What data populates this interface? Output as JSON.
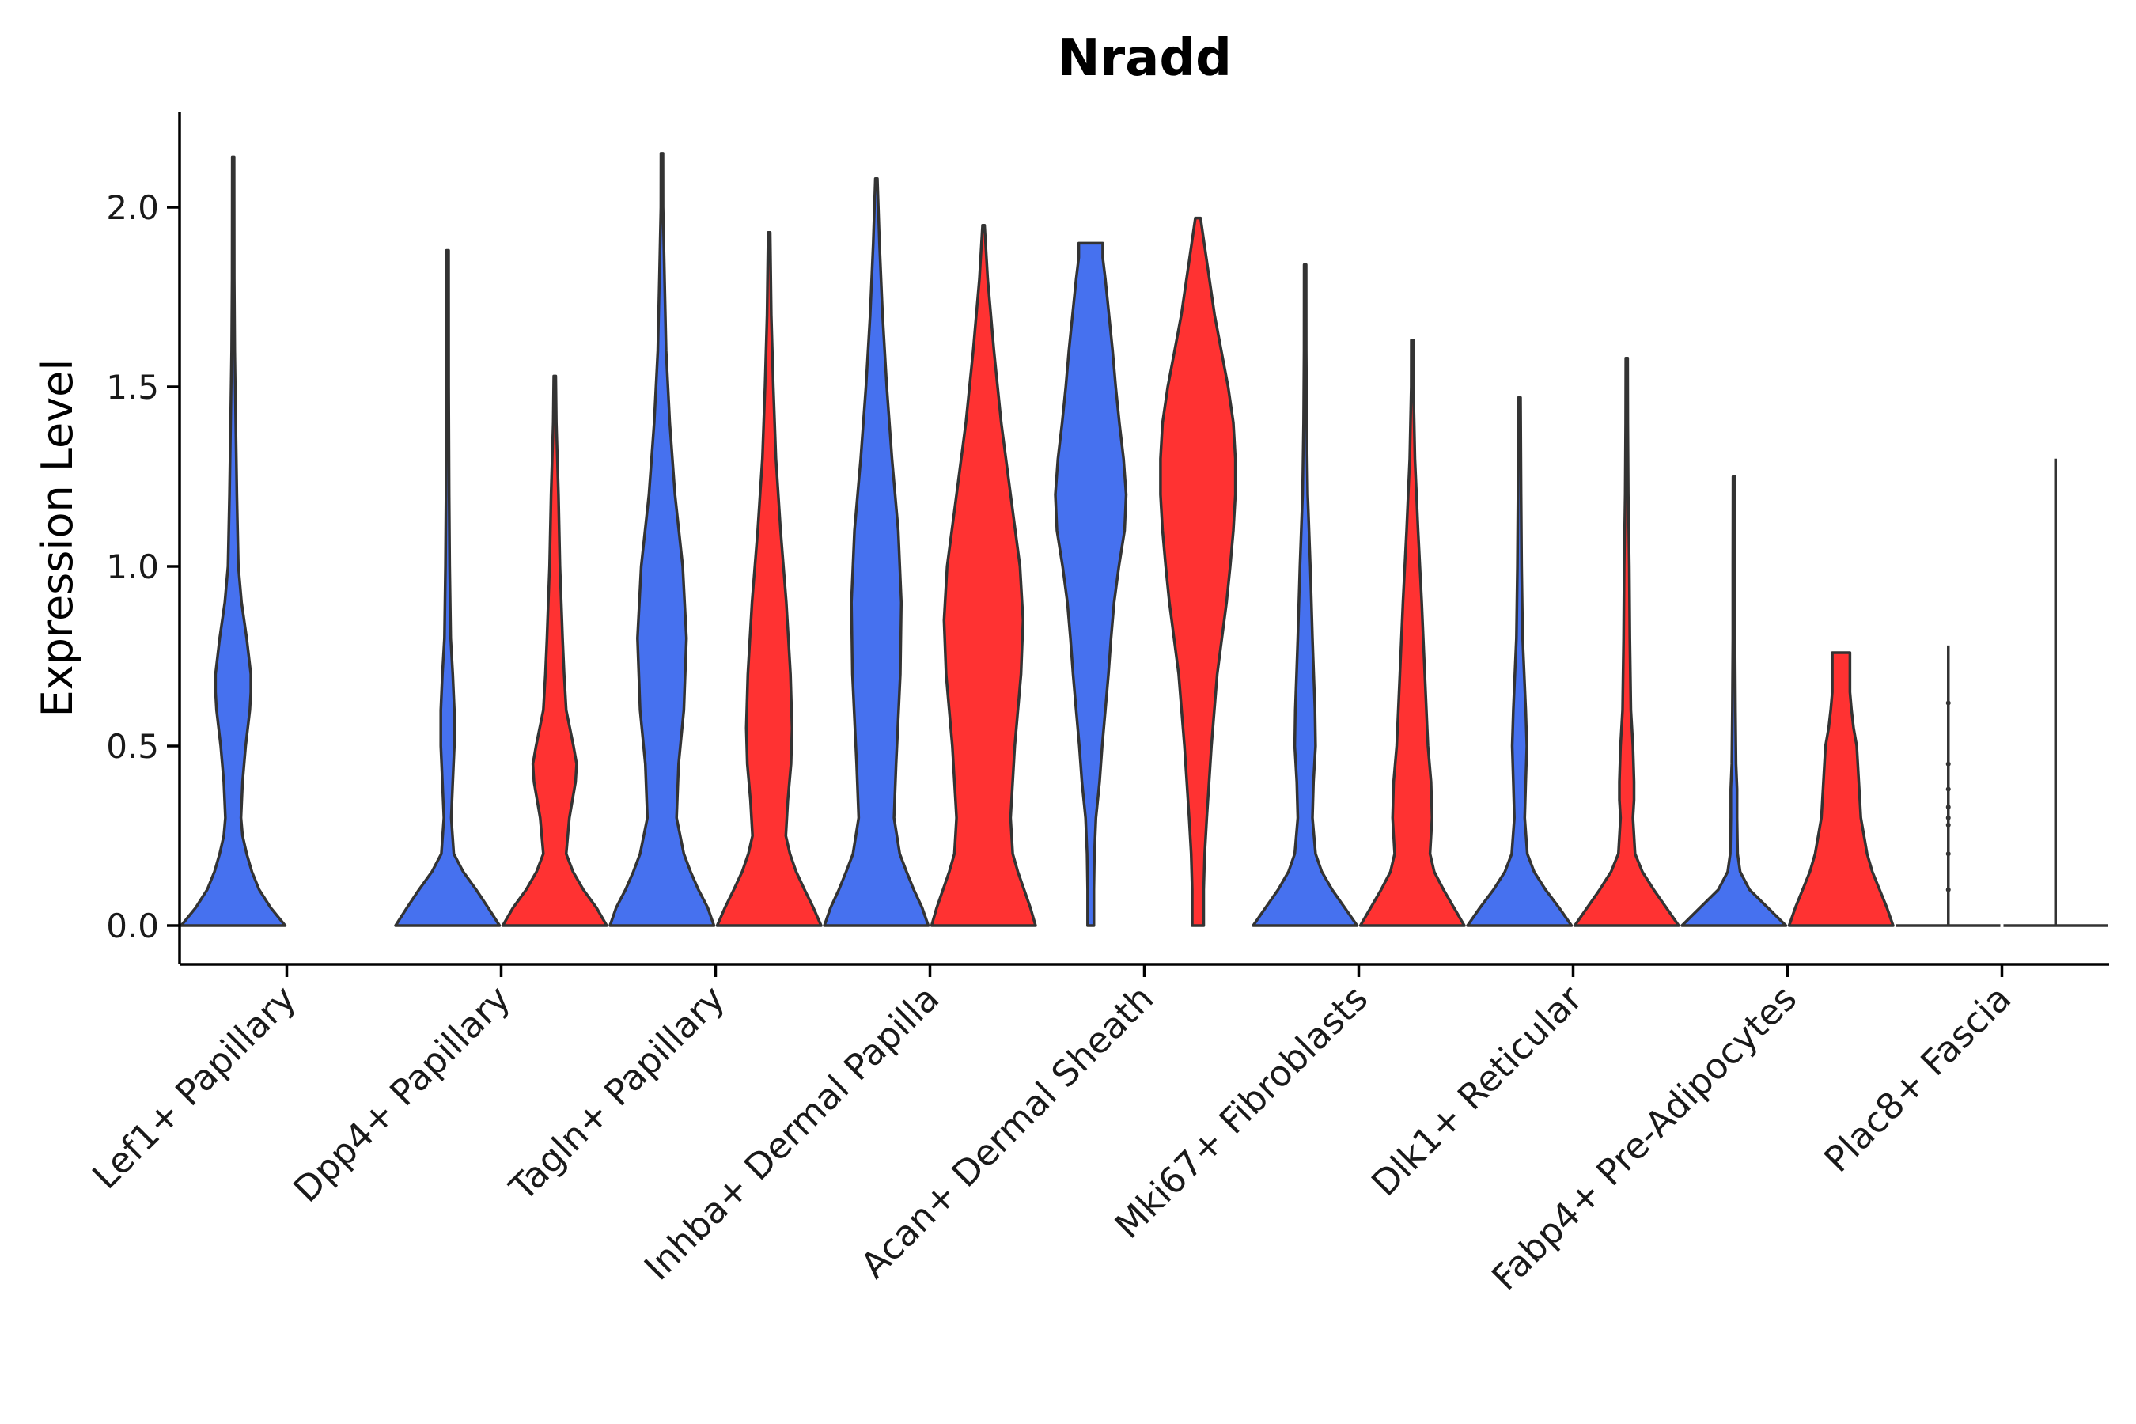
{
  "chart_data": {
    "type": "violin",
    "title": "Nradd",
    "xlabel": "",
    "ylabel": "Expression Level",
    "ylim": [
      -0.11,
      2.27
    ],
    "yticks": [
      0.0,
      0.5,
      1.0,
      1.5,
      2.0
    ],
    "ytick_labels": [
      "0.0",
      "0.5",
      "1.0",
      "1.5",
      "2.0"
    ],
    "split_colors": {
      "group_a": "#4671ef",
      "group_b": "#ff3232"
    },
    "categories": [
      "Lef1+ Papillary",
      "Dpp4+ Papillary",
      "Tagln+ Papillary",
      "Inhba+ Dermal Papilla",
      "Acan+ Dermal Sheath",
      "Mki67+ Fibroblasts",
      "Dlk1+ Reticular",
      "Fabp4+ Pre-Adipocytes",
      "Plac8+ Fascia"
    ],
    "violins": [
      {
        "category": "Lef1+ Papillary",
        "group": "group_a",
        "max": 2.14,
        "profile": [
          [
            0,
            1.0
          ],
          [
            0.05,
            0.72
          ],
          [
            0.1,
            0.5
          ],
          [
            0.15,
            0.36
          ],
          [
            0.2,
            0.26
          ],
          [
            0.25,
            0.18
          ],
          [
            0.3,
            0.15
          ],
          [
            0.4,
            0.18
          ],
          [
            0.5,
            0.24
          ],
          [
            0.6,
            0.32
          ],
          [
            0.65,
            0.34
          ],
          [
            0.7,
            0.34
          ],
          [
            0.8,
            0.26
          ],
          [
            0.9,
            0.16
          ],
          [
            1.0,
            0.1
          ],
          [
            1.2,
            0.07
          ],
          [
            1.4,
            0.05
          ],
          [
            1.6,
            0.03
          ],
          [
            1.8,
            0.02
          ],
          [
            2.14,
            0.0
          ]
        ]
      },
      {
        "category": "Dpp4+ Papillary",
        "group": "group_a",
        "max": 1.88,
        "profile": [
          [
            0,
            1.0
          ],
          [
            0.05,
            0.78
          ],
          [
            0.1,
            0.55
          ],
          [
            0.15,
            0.3
          ],
          [
            0.2,
            0.12
          ],
          [
            0.3,
            0.07
          ],
          [
            0.4,
            0.1
          ],
          [
            0.5,
            0.13
          ],
          [
            0.6,
            0.13
          ],
          [
            0.7,
            0.1
          ],
          [
            0.8,
            0.06
          ],
          [
            1.0,
            0.04
          ],
          [
            1.2,
            0.03
          ],
          [
            1.5,
            0.02
          ],
          [
            1.88,
            0.0
          ]
        ]
      },
      {
        "category": "Dpp4+ Papillary",
        "group": "group_b",
        "max": 1.53,
        "profile": [
          [
            0,
            1.0
          ],
          [
            0.05,
            0.8
          ],
          [
            0.1,
            0.55
          ],
          [
            0.15,
            0.35
          ],
          [
            0.2,
            0.22
          ],
          [
            0.3,
            0.28
          ],
          [
            0.4,
            0.4
          ],
          [
            0.45,
            0.42
          ],
          [
            0.5,
            0.36
          ],
          [
            0.6,
            0.22
          ],
          [
            0.7,
            0.18
          ],
          [
            0.8,
            0.15
          ],
          [
            1.0,
            0.1
          ],
          [
            1.2,
            0.07
          ],
          [
            1.4,
            0.03
          ],
          [
            1.53,
            0.0
          ]
        ]
      },
      {
        "category": "Tagln+ Papillary",
        "group": "group_a",
        "max": 2.15,
        "profile": [
          [
            0,
            1.0
          ],
          [
            0.05,
            0.88
          ],
          [
            0.1,
            0.7
          ],
          [
            0.15,
            0.55
          ],
          [
            0.2,
            0.42
          ],
          [
            0.3,
            0.28
          ],
          [
            0.45,
            0.32
          ],
          [
            0.6,
            0.42
          ],
          [
            0.8,
            0.47
          ],
          [
            1.0,
            0.4
          ],
          [
            1.2,
            0.25
          ],
          [
            1.4,
            0.15
          ],
          [
            1.6,
            0.08
          ],
          [
            1.8,
            0.05
          ],
          [
            2.0,
            0.02
          ],
          [
            2.15,
            0.0
          ]
        ]
      },
      {
        "category": "Tagln+ Papillary",
        "group": "group_b",
        "max": 1.93,
        "profile": [
          [
            0,
            1.0
          ],
          [
            0.05,
            0.85
          ],
          [
            0.1,
            0.68
          ],
          [
            0.15,
            0.52
          ],
          [
            0.2,
            0.4
          ],
          [
            0.25,
            0.32
          ],
          [
            0.35,
            0.36
          ],
          [
            0.45,
            0.42
          ],
          [
            0.55,
            0.44
          ],
          [
            0.7,
            0.41
          ],
          [
            0.9,
            0.33
          ],
          [
            1.1,
            0.22
          ],
          [
            1.3,
            0.13
          ],
          [
            1.5,
            0.08
          ],
          [
            1.7,
            0.04
          ],
          [
            1.93,
            0.0
          ]
        ]
      },
      {
        "category": "Inhba+ Dermal Papilla",
        "group": "group_a",
        "max": 2.08,
        "profile": [
          [
            0,
            1.0
          ],
          [
            0.05,
            0.88
          ],
          [
            0.1,
            0.72
          ],
          [
            0.15,
            0.58
          ],
          [
            0.2,
            0.45
          ],
          [
            0.3,
            0.34
          ],
          [
            0.45,
            0.38
          ],
          [
            0.7,
            0.46
          ],
          [
            0.9,
            0.48
          ],
          [
            1.1,
            0.42
          ],
          [
            1.3,
            0.3
          ],
          [
            1.5,
            0.2
          ],
          [
            1.7,
            0.12
          ],
          [
            1.9,
            0.06
          ],
          [
            2.08,
            0.0
          ]
        ]
      },
      {
        "category": "Inhba+ Dermal Papilla",
        "group": "group_b",
        "max": 1.95,
        "profile": [
          [
            0,
            1.0
          ],
          [
            0.05,
            0.9
          ],
          [
            0.1,
            0.78
          ],
          [
            0.15,
            0.66
          ],
          [
            0.2,
            0.56
          ],
          [
            0.3,
            0.52
          ],
          [
            0.5,
            0.6
          ],
          [
            0.7,
            0.72
          ],
          [
            0.85,
            0.76
          ],
          [
            1.0,
            0.7
          ],
          [
            1.2,
            0.52
          ],
          [
            1.4,
            0.34
          ],
          [
            1.6,
            0.2
          ],
          [
            1.8,
            0.08
          ],
          [
            1.95,
            0.0
          ]
        ]
      },
      {
        "category": "Acan+ Dermal Sheath",
        "group": "group_a",
        "max": 1.9,
        "profile": [
          [
            0,
            0.06
          ],
          [
            0.1,
            0.06
          ],
          [
            0.2,
            0.07
          ],
          [
            0.3,
            0.1
          ],
          [
            0.4,
            0.17
          ],
          [
            0.5,
            0.22
          ],
          [
            0.6,
            0.28
          ],
          [
            0.7,
            0.34
          ],
          [
            0.8,
            0.39
          ],
          [
            0.9,
            0.45
          ],
          [
            1.0,
            0.54
          ],
          [
            1.1,
            0.65
          ],
          [
            1.2,
            0.68
          ],
          [
            1.3,
            0.63
          ],
          [
            1.4,
            0.55
          ],
          [
            1.5,
            0.48
          ],
          [
            1.6,
            0.42
          ],
          [
            1.7,
            0.35
          ],
          [
            1.8,
            0.28
          ],
          [
            1.86,
            0.23
          ],
          [
            1.9,
            0.23
          ]
        ]
      },
      {
        "category": "Acan+ Dermal Sheath",
        "group": "group_b",
        "max": 1.97,
        "profile": [
          [
            0,
            0.11
          ],
          [
            0.1,
            0.11
          ],
          [
            0.2,
            0.13
          ],
          [
            0.3,
            0.17
          ],
          [
            0.5,
            0.26
          ],
          [
            0.7,
            0.37
          ],
          [
            0.9,
            0.55
          ],
          [
            1.0,
            0.62
          ],
          [
            1.1,
            0.68
          ],
          [
            1.2,
            0.72
          ],
          [
            1.3,
            0.72
          ],
          [
            1.4,
            0.68
          ],
          [
            1.5,
            0.58
          ],
          [
            1.6,
            0.45
          ],
          [
            1.7,
            0.32
          ],
          [
            1.8,
            0.22
          ],
          [
            1.9,
            0.12
          ],
          [
            1.96,
            0.06
          ],
          [
            1.97,
            0.05
          ]
        ]
      },
      {
        "category": "Mki67+ Fibroblasts",
        "group": "group_a",
        "max": 1.84,
        "profile": [
          [
            0,
            1.0
          ],
          [
            0.05,
            0.76
          ],
          [
            0.1,
            0.52
          ],
          [
            0.15,
            0.32
          ],
          [
            0.2,
            0.2
          ],
          [
            0.3,
            0.14
          ],
          [
            0.4,
            0.16
          ],
          [
            0.5,
            0.2
          ],
          [
            0.6,
            0.19
          ],
          [
            0.8,
            0.14
          ],
          [
            1.0,
            0.1
          ],
          [
            1.2,
            0.05
          ],
          [
            1.4,
            0.03
          ],
          [
            1.6,
            0.02
          ],
          [
            1.84,
            0.0
          ]
        ]
      },
      {
        "category": "Mki67+ Fibroblasts",
        "group": "group_b",
        "max": 1.63,
        "profile": [
          [
            0,
            1.0
          ],
          [
            0.05,
            0.8
          ],
          [
            0.1,
            0.6
          ],
          [
            0.15,
            0.42
          ],
          [
            0.2,
            0.34
          ],
          [
            0.3,
            0.38
          ],
          [
            0.4,
            0.36
          ],
          [
            0.5,
            0.3
          ],
          [
            0.7,
            0.24
          ],
          [
            0.9,
            0.18
          ],
          [
            1.1,
            0.11
          ],
          [
            1.3,
            0.05
          ],
          [
            1.5,
            0.02
          ],
          [
            1.63,
            0.0
          ]
        ]
      },
      {
        "category": "Dlk1+ Reticular",
        "group": "group_a",
        "max": 1.47,
        "profile": [
          [
            0,
            1.0
          ],
          [
            0.05,
            0.76
          ],
          [
            0.1,
            0.5
          ],
          [
            0.15,
            0.28
          ],
          [
            0.2,
            0.15
          ],
          [
            0.3,
            0.1
          ],
          [
            0.4,
            0.12
          ],
          [
            0.5,
            0.14
          ],
          [
            0.6,
            0.12
          ],
          [
            0.8,
            0.06
          ],
          [
            1.0,
            0.04
          ],
          [
            1.2,
            0.03
          ],
          [
            1.47,
            0.0
          ]
        ]
      },
      {
        "category": "Dlk1+ Reticular",
        "group": "group_b",
        "max": 1.58,
        "profile": [
          [
            0,
            1.0
          ],
          [
            0.05,
            0.76
          ],
          [
            0.1,
            0.52
          ],
          [
            0.15,
            0.3
          ],
          [
            0.2,
            0.16
          ],
          [
            0.3,
            0.12
          ],
          [
            0.35,
            0.14
          ],
          [
            0.4,
            0.14
          ],
          [
            0.5,
            0.12
          ],
          [
            0.6,
            0.08
          ],
          [
            0.8,
            0.06
          ],
          [
            1.0,
            0.05
          ],
          [
            1.2,
            0.03
          ],
          [
            1.4,
            0.02
          ],
          [
            1.58,
            0.0
          ]
        ]
      },
      {
        "category": "Fabp4+ Pre-Adipocytes",
        "group": "group_a",
        "max": 1.25,
        "profile": [
          [
            0,
            1.0
          ],
          [
            0.05,
            0.65
          ],
          [
            0.1,
            0.3
          ],
          [
            0.15,
            0.12
          ],
          [
            0.2,
            0.07
          ],
          [
            0.3,
            0.06
          ],
          [
            0.38,
            0.06
          ],
          [
            0.45,
            0.04
          ],
          [
            0.6,
            0.03
          ],
          [
            0.8,
            0.02
          ],
          [
            1.0,
            0.02
          ],
          [
            1.25,
            0.0
          ]
        ]
      },
      {
        "category": "Fabp4+ Pre-Adipocytes",
        "group": "group_b",
        "max": 0.76,
        "profile": [
          [
            0,
            1.0
          ],
          [
            0.05,
            0.88
          ],
          [
            0.1,
            0.74
          ],
          [
            0.15,
            0.6
          ],
          [
            0.2,
            0.5
          ],
          [
            0.3,
            0.38
          ],
          [
            0.35,
            0.36
          ],
          [
            0.4,
            0.34
          ],
          [
            0.5,
            0.3
          ],
          [
            0.55,
            0.24
          ],
          [
            0.6,
            0.2
          ],
          [
            0.65,
            0.17
          ],
          [
            0.7,
            0.17
          ],
          [
            0.76,
            0.17
          ]
        ]
      },
      {
        "category": "Plac8+ Fascia",
        "group": "group_a",
        "max": 0.78,
        "profile": [
          [
            0,
            1.0
          ],
          [
            0.78,
            0.0
          ]
        ]
      },
      {
        "category": "Plac8+ Fascia",
        "group": "group_b",
        "max": 1.3,
        "profile": [
          [
            0,
            1.0
          ],
          [
            1.3,
            0.0
          ]
        ]
      }
    ]
  }
}
